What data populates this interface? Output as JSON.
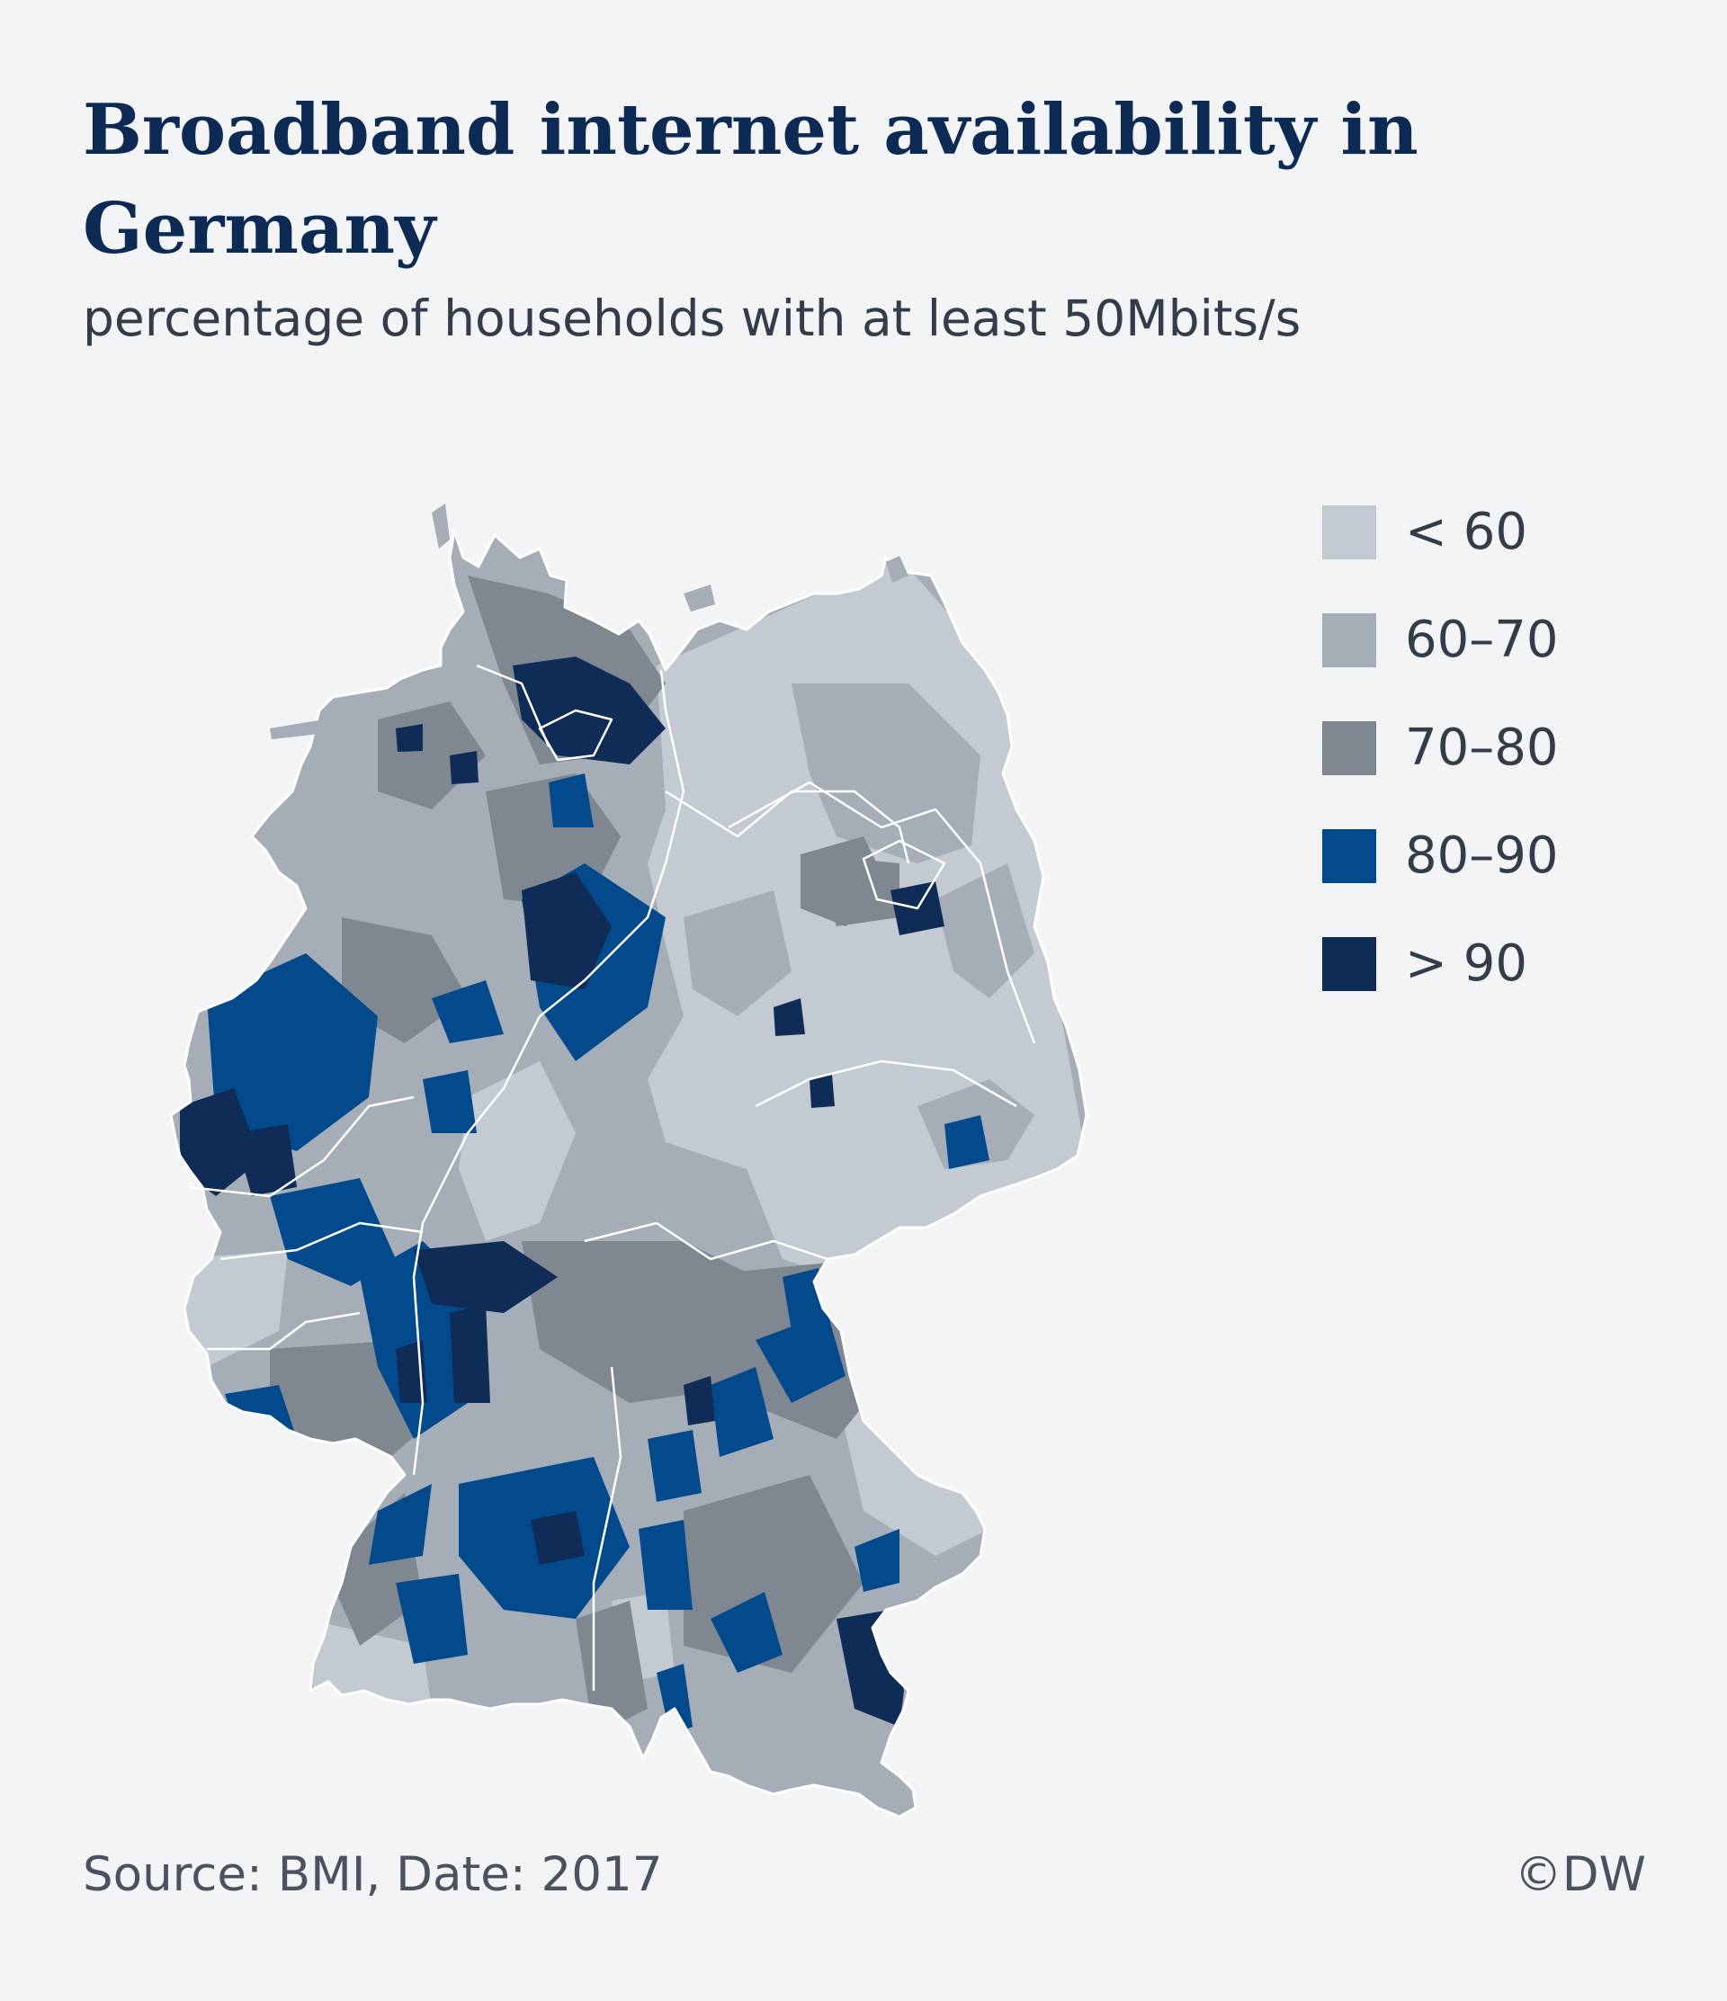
{
  "header": {
    "title": "Broadband internet availability in Germany",
    "subtitle": "percentage of households with at least 50Mbits/s"
  },
  "legend": {
    "items": [
      {
        "label": "< 60",
        "color": "#c4cad2"
      },
      {
        "label": "60–70",
        "color": "#a5adb7"
      },
      {
        "label": "70–80",
        "color": "#7f8791"
      },
      {
        "label": "80–90",
        "color": "#034a8d"
      },
      {
        "label": "> 90",
        "color": "#0e2c56"
      }
    ]
  },
  "footer": {
    "source": "Source: BMI, Date: 2017",
    "credit": "©DW"
  }
}
